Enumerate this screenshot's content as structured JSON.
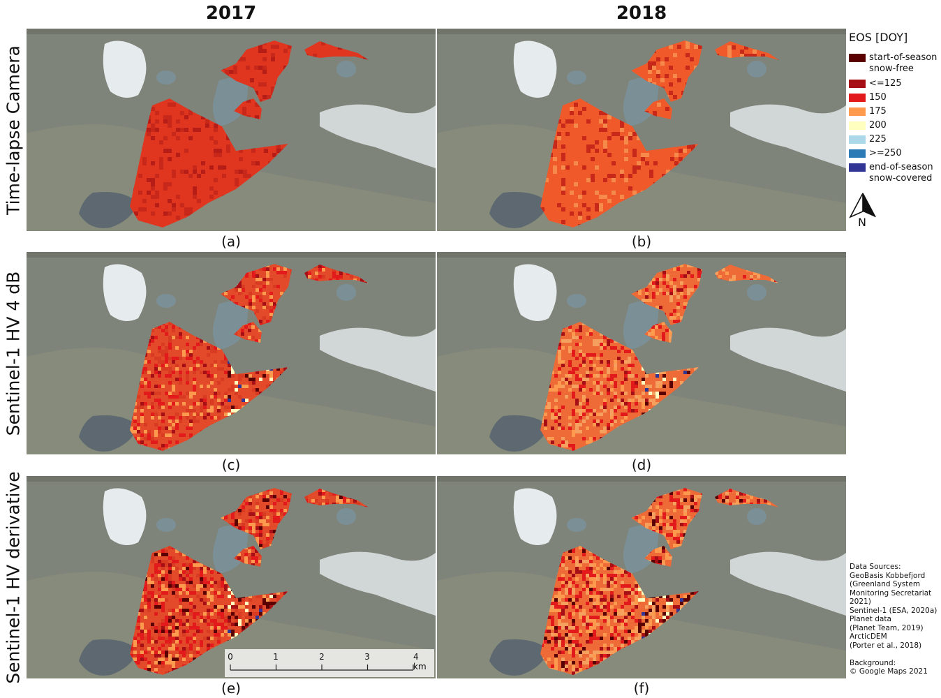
{
  "columns": [
    "2017",
    "2018"
  ],
  "rows": [
    "Time-lapse Camera",
    "Sentinel-1 HV 4 dB",
    "Sentinel-1 HV derivative"
  ],
  "panels": [
    {
      "label": "(a)",
      "style": "camera",
      "seed": 11
    },
    {
      "label": "(b)",
      "style": "camera-light",
      "seed": 23
    },
    {
      "label": "(c)",
      "style": "s1-dB",
      "seed": 37
    },
    {
      "label": "(d)",
      "style": "s1-dB-light",
      "seed": 41
    },
    {
      "label": "(e)",
      "style": "s1-deriv",
      "seed": 53
    },
    {
      "label": "(f)",
      "style": "s1-deriv-light",
      "seed": 67
    }
  ],
  "legend": {
    "title": "EOS [DOY]",
    "items": [
      {
        "label": "start-of-season\n  snow-free",
        "color": "#5a0000"
      },
      {
        "label": "<=125",
        "color": "#a50f15"
      },
      {
        "label": "150",
        "color": "#e31a1c"
      },
      {
        "label": "175",
        "color": "#fd9a4d"
      },
      {
        "label": "200",
        "color": "#ffffbf"
      },
      {
        "label": "225",
        "color": "#abd9e9"
      },
      {
        "label": ">=250",
        "color": "#2c7bb6"
      },
      {
        "label": "end-of-season\n  snow-covered",
        "color": "#313695"
      }
    ]
  },
  "north_label": "N",
  "scalebar": {
    "ticks": [
      "0",
      "1",
      "2",
      "3",
      "4 km"
    ]
  },
  "sources": "Data Sources:\nGeoBasis Kobbefjord\n (Greenland System\n  Monitoring Secretariat\n  2021)\nSentinel-1 (ESA, 2020a)\nPlanet data\n  (Planet Team, 2019)\nArcticDEM\n  (Porter et al., 2018)\n\nBackground:\n   © Google Maps 2021",
  "colors": {
    "terrain": "#7f847a",
    "lake": "#7b8f97",
    "fjord": "#5d6870",
    "snow": "#e6ebee"
  }
}
